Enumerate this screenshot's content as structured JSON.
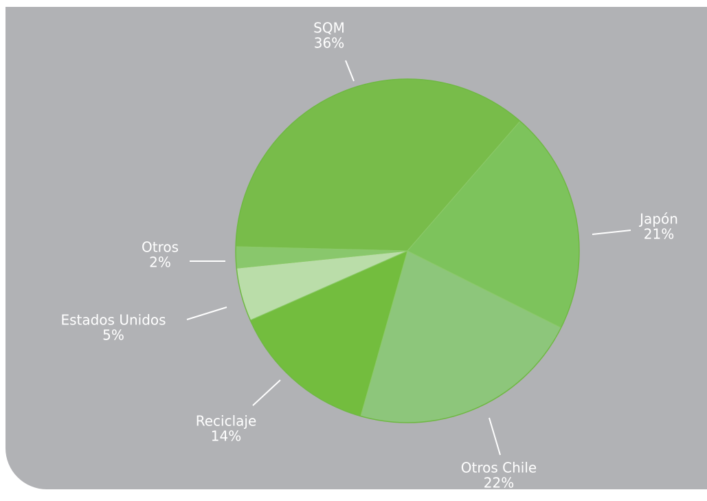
{
  "chart_data": {
    "type": "pie",
    "categories": [
      "SQM",
      "Japón",
      "Otros Chile",
      "Reciclaje",
      "Estados Unidos",
      "Otros"
    ],
    "values": [
      36,
      21,
      22,
      14,
      5,
      2
    ],
    "value_labels": [
      "36%",
      "21%",
      "22%",
      "14%",
      "5%",
      "2%"
    ],
    "colors": [
      "#78bc4a",
      "#7dc35c",
      "#8dc67b",
      "#73bd3e",
      "#badda9",
      "#89c76c"
    ]
  }
}
